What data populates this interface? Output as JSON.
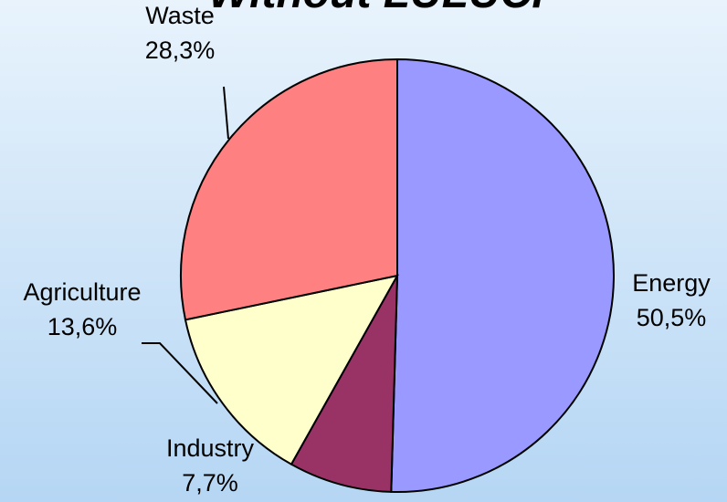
{
  "chart_data": {
    "type": "pie",
    "title": "Without LULUCF",
    "categories": [
      "Energy",
      "Industry",
      "Agriculture",
      "Waste"
    ],
    "values": [
      50.5,
      7.7,
      13.6,
      28.3
    ],
    "value_labels": [
      "50,5%",
      "7,7%",
      "13,6%",
      "28,3%"
    ],
    "colors": [
      "#9999ff",
      "#993366",
      "#ffffcc",
      "#ff8080"
    ]
  }
}
